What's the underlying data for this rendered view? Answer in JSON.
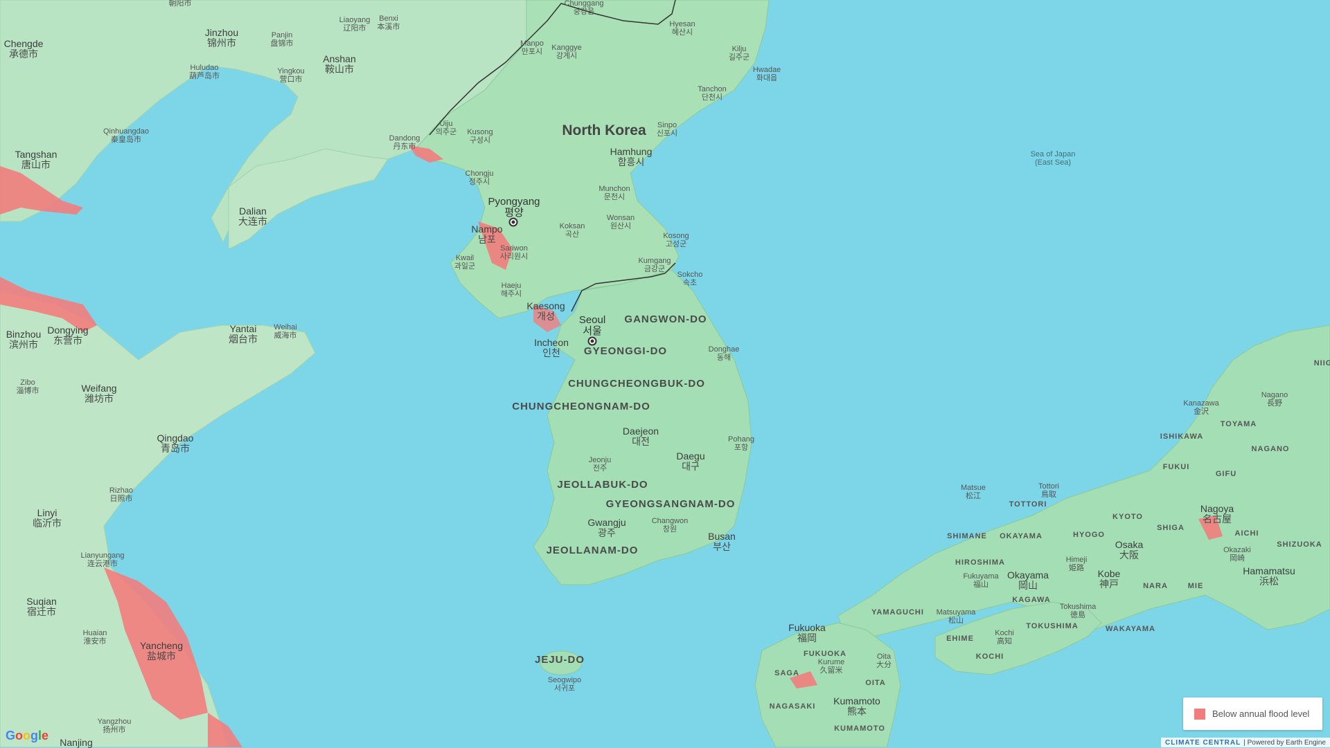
{
  "colors": {
    "sea": "#7dd6e8",
    "land": "#a7e0bb",
    "flood": "#f27d7d",
    "border": "#333333"
  },
  "country": {
    "name": "North Korea"
  },
  "sea_label": {
    "line1": "Sea of Japan",
    "line2": "(East Sea)"
  },
  "cities": {
    "chaoyang": {
      "n": "",
      "l": "朝阳市"
    },
    "jinzhou": {
      "n": "Jinzhou",
      "l": "锦州市"
    },
    "panjin": {
      "n": "Panjin",
      "l": "盘锦市"
    },
    "liaoyang": {
      "n": "Liaoyang",
      "l": "辽阳市"
    },
    "benxi": {
      "n": "Benxi",
      "l": "本溪市"
    },
    "chengde": {
      "n": "Chengde",
      "l": "承德市"
    },
    "anshan": {
      "n": "Anshan",
      "l": "鞍山市"
    },
    "huludao": {
      "n": "Huludao",
      "l": "葫芦岛市"
    },
    "yingkou": {
      "n": "Yingkou",
      "l": "营口市"
    },
    "qinhuangdao": {
      "n": "Qinhuangdao",
      "l": "秦皇岛市"
    },
    "tangshan": {
      "n": "Tangshan",
      "l": "唐山市"
    },
    "dalian": {
      "n": "Dalian",
      "l": "大连市"
    },
    "dandong": {
      "n": "Dandong",
      "l": "丹东市"
    },
    "binzhou": {
      "n": "Binzhou",
      "l": "滨州市"
    },
    "dongying": {
      "n": "Dongying",
      "l": "东营市"
    },
    "yantai": {
      "n": "Yantai",
      "l": "烟台市"
    },
    "weihai": {
      "n": "Weihai",
      "l": "威海市"
    },
    "zibo": {
      "n": "Zibo",
      "l": "淄博市"
    },
    "weifang": {
      "n": "Weifang",
      "l": "潍坊市"
    },
    "qingdao": {
      "n": "Qingdao",
      "l": "青岛市"
    },
    "rizhao": {
      "n": "Rizhao",
      "l": "日照市"
    },
    "linyi": {
      "n": "Linyi",
      "l": "临沂市"
    },
    "lianyungang": {
      "n": "Lianyungang",
      "l": "连云港市"
    },
    "suqian": {
      "n": "Suqian",
      "l": "宿迁市"
    },
    "huaian": {
      "n": "Huaian",
      "l": "淮安市"
    },
    "yancheng": {
      "n": "Yancheng",
      "l": "盐城市"
    },
    "yangzhou": {
      "n": "Yangzhou",
      "l": "扬州市"
    },
    "nanjing": {
      "n": "Nanjing",
      "l": ""
    },
    "chunggang": {
      "n": "Chunggang",
      "l": "중강읍"
    },
    "hyesan": {
      "n": "Hyesan",
      "l": "혜산시"
    },
    "manpo": {
      "n": "Manpo",
      "l": "만포시"
    },
    "kanggye": {
      "n": "Kanggye",
      "l": "강계시"
    },
    "kilju": {
      "n": "Kilju",
      "l": "길주군"
    },
    "hwadae": {
      "n": "Hwadae",
      "l": "화대읍"
    },
    "tanchon": {
      "n": "Tanchon",
      "l": "단천시"
    },
    "uiju": {
      "n": "Uiju",
      "l": "의주군"
    },
    "kusong": {
      "n": "Kusong",
      "l": "구성시"
    },
    "sinpo": {
      "n": "Sinpo",
      "l": "신포시"
    },
    "hamhung": {
      "n": "Hamhung",
      "l": "함흥시"
    },
    "chongju": {
      "n": "Chongju",
      "l": "정주시"
    },
    "munchon": {
      "n": "Munchon",
      "l": "문천시"
    },
    "pyongyang": {
      "n": "Pyongyang",
      "l": "평양"
    },
    "wonsan": {
      "n": "Wonsan",
      "l": "원산시"
    },
    "nampo": {
      "n": "Nampo",
      "l": "남포"
    },
    "koksan": {
      "n": "Koksan",
      "l": "곡산"
    },
    "sariwon": {
      "n": "Sariwon",
      "l": "사리원시"
    },
    "kosong": {
      "n": "Kosong",
      "l": "고성군"
    },
    "kwail": {
      "n": "Kwail",
      "l": "과일군"
    },
    "kumgang": {
      "n": "Kumgang",
      "l": "금강군"
    },
    "sokcho": {
      "n": "Sokcho",
      "l": "속초"
    },
    "haeju": {
      "n": "Haeju",
      "l": "해주시"
    },
    "kaesong": {
      "n": "Kaesong",
      "l": "개성"
    },
    "seoul": {
      "n": "Seoul",
      "l": "서울"
    },
    "incheon": {
      "n": "Incheon",
      "l": "인천"
    },
    "donghae": {
      "n": "Donghae",
      "l": "동해"
    },
    "daejeon": {
      "n": "Daejeon",
      "l": "대전"
    },
    "pohang": {
      "n": "Pohang",
      "l": "포항"
    },
    "daegu": {
      "n": "Daegu",
      "l": "대구"
    },
    "jeonju": {
      "n": "Jeonju",
      "l": "전주"
    },
    "gwangju": {
      "n": "Gwangju",
      "l": "광주"
    },
    "changwon": {
      "n": "Changwon",
      "l": "창원"
    },
    "busan": {
      "n": "Busan",
      "l": "부산"
    },
    "seogwipo": {
      "n": "Seogwipo",
      "l": "서귀포"
    },
    "matsue": {
      "n": "Matsue",
      "l": "松江"
    },
    "tottori": {
      "n": "Tottori",
      "l": "鳥取"
    },
    "kanazawa": {
      "n": "Kanazawa",
      "l": "金沢"
    },
    "nagano": {
      "n": "Nagano",
      "l": "長野"
    },
    "nagoya": {
      "n": "Nagoya",
      "l": "名古屋"
    },
    "okazaki": {
      "n": "Okazaki",
      "l": "岡崎"
    },
    "hamamatsu": {
      "n": "Hamamatsu",
      "l": "浜松"
    },
    "himeji": {
      "n": "Himeji",
      "l": "姫路"
    },
    "osaka": {
      "n": "Osaka",
      "l": "大阪"
    },
    "kobe": {
      "n": "Kobe",
      "l": "神戸"
    },
    "fukuyama": {
      "n": "Fukuyama",
      "l": "福山"
    },
    "okayama": {
      "n": "Okayama",
      "l": "岡山"
    },
    "matsuyama": {
      "n": "Matsuyama",
      "l": "松山"
    },
    "tokushima": {
      "n": "Tokushima",
      "l": "徳島"
    },
    "kochi": {
      "n": "Kochi",
      "l": "高知"
    },
    "fukuoka": {
      "n": "Fukuoka",
      "l": "福岡"
    },
    "kurume": {
      "n": "Kurume",
      "l": "久留米"
    },
    "oita": {
      "n": "Oita",
      "l": "大分"
    },
    "kumamoto": {
      "n": "Kumamoto",
      "l": "熊本"
    }
  },
  "regions": {
    "gangwon": "GANGWON-DO",
    "gyeonggi": "GYEONGGI-DO",
    "chungbuk": "CHUNGCHEONGBUK-DO",
    "chungnam": "CHUNGCHEONGNAM-DO",
    "jeonbuk": "JEOLLABUK-DO",
    "gyeongnam": "GYEONGSANGNAM-DO",
    "jeonnam": "JEOLLANAM-DO",
    "jeju": "JEJU-DO",
    "ishikawa": "ISHIKAWA",
    "toyama": "TOYAMA",
    "fukui": "FUKUI",
    "gifu": "GIFU",
    "nagano_p": "NAGANO",
    "niig": "NIIG",
    "shimane": "SHIMANE",
    "tottori_p": "TOTTORI",
    "okayama_p": "OKAYAMA",
    "hyogo": "HYOGO",
    "kyoto": "KYOTO",
    "shiga": "SHIGA",
    "aichi": "AICHI",
    "shizuoka": "SHIZUOKA",
    "hiroshima": "HIROSHIMA",
    "nara": "NARA",
    "mie": "MIE",
    "yamaguchi": "YAMAGUCHI",
    "kagawa": "KAGAWA",
    "ehime": "EHIME",
    "tokushima_p": "TOKUSHIMA",
    "wakayama": "WAKAYAMA",
    "kochi_p": "KOCHI",
    "fukuoka_p": "FUKUOKA",
    "saga": "SAGA",
    "oita_p": "OITA",
    "nagasaki": "NAGASAKI",
    "kumamoto_p": "KUMAMOTO"
  },
  "legend": {
    "label": "Below annual flood level"
  },
  "attribution": {
    "brand": "CLIMATE CENTRAL",
    "powered": "| Powered by Earth Engine"
  },
  "google_logo": "Google"
}
